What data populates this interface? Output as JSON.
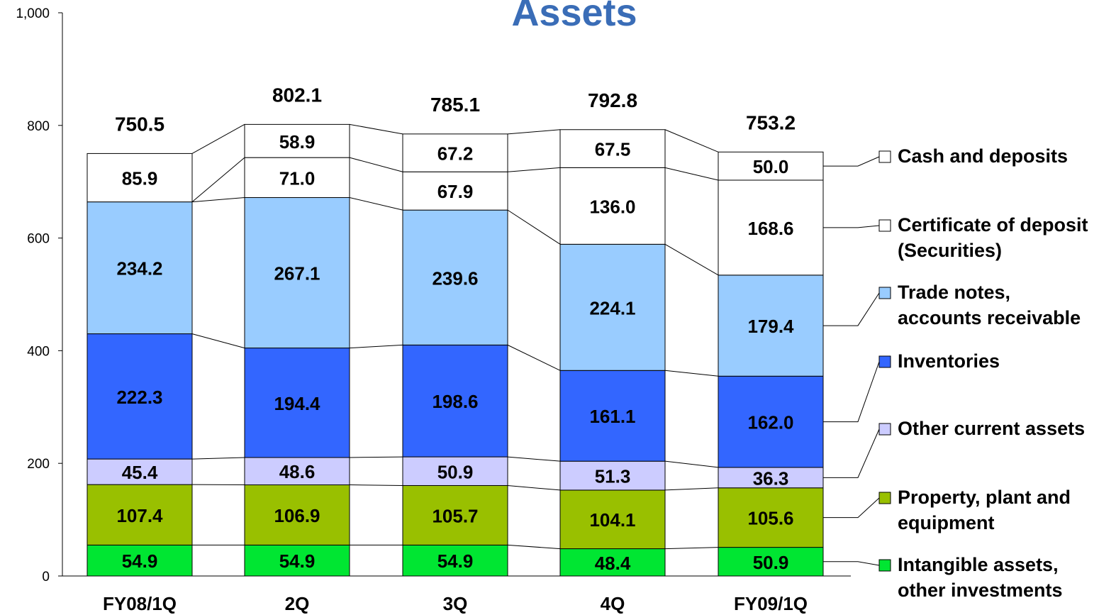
{
  "chart_data": {
    "type": "stacked_bar",
    "title": "Assets",
    "categories": [
      "FY08/1Q",
      "2Q",
      "3Q",
      "4Q",
      "FY09/1Q"
    ],
    "series": [
      {
        "name": "Intangible assets,\nother investments",
        "color": "#00e632",
        "values": [
          54.9,
          54.9,
          54.9,
          48.4,
          50.9
        ]
      },
      {
        "name": "Property, plant and\nequipment",
        "color": "#99c000",
        "values": [
          107.4,
          106.9,
          105.7,
          104.1,
          105.6
        ]
      },
      {
        "name": "Other current assets",
        "color": "#ccccff",
        "values": [
          45.4,
          48.6,
          50.9,
          51.3,
          36.3
        ]
      },
      {
        "name": "Inventories",
        "color": "#3366ff",
        "values": [
          222.3,
          194.4,
          198.6,
          161.1,
          162.0
        ],
        "value_labels": [
          "222.3",
          "194.4",
          "198.6",
          "161.1",
          "162.0"
        ]
      },
      {
        "name": "Trade notes,\naccounts receivable",
        "color": "#99ccff",
        "values": [
          234.2,
          267.1,
          239.6,
          224.1,
          179.4
        ]
      },
      {
        "name": "Certificate of deposit\n(Securities)",
        "color": "#ffffff",
        "values": [
          null,
          71.0,
          67.9,
          136.0,
          168.6
        ],
        "value_labels": [
          null,
          "71.0",
          "67.9",
          "136.0",
          "168.6"
        ]
      },
      {
        "name": "Cash and deposits",
        "color": "#ffffff",
        "values": [
          85.9,
          58.9,
          67.2,
          67.5,
          50.0
        ],
        "value_labels": [
          "85.9",
          "58.9",
          "67.2",
          "67.5",
          "50.0"
        ]
      }
    ],
    "totals": [
      750.5,
      802.1,
      785.1,
      792.8,
      753.2
    ],
    "ylim": [
      0,
      1000
    ],
    "yticks": [
      0,
      200,
      400,
      600,
      800,
      {
        "value": 1000,
        "label": "1,000"
      }
    ]
  }
}
